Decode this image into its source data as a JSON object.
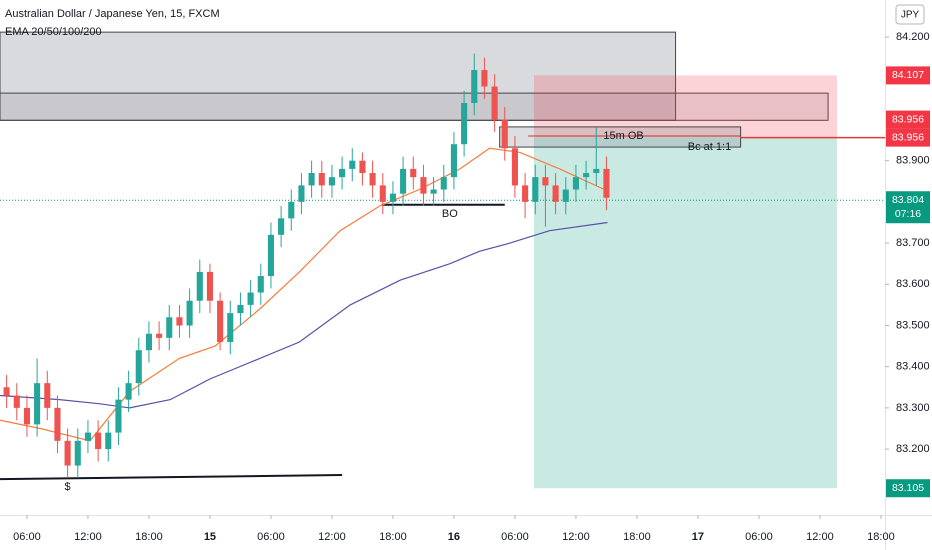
{
  "chart_data": {
    "type": "candlestick",
    "title": "Australian Dollar / Japanese Yen, 15, FXCM",
    "subtitle": "EMA 20/50/100/200",
    "currency": "JPY",
    "xlim": [
      3.35,
      90.4
    ],
    "ylim": [
      83.04,
      84.29
    ],
    "xticks": [
      {
        "value": 6,
        "label": "06:00"
      },
      {
        "value": 12,
        "label": "12:00"
      },
      {
        "value": 18,
        "label": "18:00"
      },
      {
        "value": 24,
        "label": "15"
      },
      {
        "value": 30,
        "label": "06:00"
      },
      {
        "value": 36,
        "label": "12:00"
      },
      {
        "value": 42,
        "label": "18:00"
      },
      {
        "value": 48,
        "label": "16"
      },
      {
        "value": 54,
        "label": "06:00"
      },
      {
        "value": 60,
        "label": "12:00"
      },
      {
        "value": 66,
        "label": "18:00"
      },
      {
        "value": 72,
        "label": "17"
      },
      {
        "value": 78,
        "label": "06:00"
      },
      {
        "value": 84,
        "label": "12:00"
      },
      {
        "value": 90,
        "label": "18:00"
      }
    ],
    "yticks": [
      {
        "value": 84.2,
        "label": "84.200"
      },
      {
        "value": 83.9,
        "label": "83.900"
      },
      {
        "value": 83.7,
        "label": "83.700"
      },
      {
        "value": 83.6,
        "label": "83.600"
      },
      {
        "value": 83.5,
        "label": "83.500"
      },
      {
        "value": 83.4,
        "label": "83.400"
      },
      {
        "value": 83.3,
        "label": "83.300"
      },
      {
        "value": 83.2,
        "label": "83.200"
      }
    ],
    "grid": false,
    "up_color": "#26a69a",
    "down_color": "#ef5350",
    "x": [
      4,
      5,
      6,
      7,
      8,
      9,
      10,
      11,
      12,
      13,
      14,
      15,
      16,
      17,
      18,
      19,
      20,
      21,
      22,
      23,
      24,
      25,
      26,
      27,
      28,
      29,
      30,
      31,
      32,
      33,
      34,
      35,
      36,
      37,
      38,
      39,
      40,
      41,
      42,
      43,
      44,
      45,
      46,
      47,
      48,
      49,
      50,
      51,
      52,
      53,
      54,
      55,
      56,
      57,
      58,
      59,
      60,
      61,
      62,
      63
    ],
    "open": [
      83.35,
      83.33,
      83.3,
      83.26,
      83.36,
      83.3,
      83.22,
      83.16,
      83.22,
      83.24,
      83.2,
      83.24,
      83.32,
      83.36,
      83.44,
      83.48,
      83.47,
      83.52,
      83.5,
      83.56,
      83.63,
      83.56,
      83.46,
      83.53,
      83.55,
      83.58,
      83.62,
      83.72,
      83.76,
      83.8,
      83.84,
      83.87,
      83.84,
      83.86,
      83.88,
      83.9,
      83.87,
      83.84,
      83.8,
      83.82,
      83.88,
      83.86,
      83.82,
      83.83,
      83.86,
      83.94,
      84.04,
      84.12,
      84.08,
      84.0,
      83.93,
      83.84,
      83.8,
      83.86,
      83.84,
      83.8,
      83.83,
      83.86,
      83.87,
      83.88
    ],
    "high": [
      83.38,
      83.36,
      83.33,
      83.42,
      83.39,
      83.33,
      83.25,
      83.25,
      83.27,
      83.27,
      83.27,
      83.35,
      83.39,
      83.47,
      83.51,
      83.51,
      83.55,
      83.55,
      83.59,
      83.66,
      83.65,
      83.58,
      83.56,
      83.58,
      83.61,
      83.65,
      83.75,
      83.79,
      83.83,
      83.87,
      83.9,
      83.9,
      83.89,
      83.91,
      83.93,
      83.92,
      83.9,
      83.87,
      83.85,
      83.91,
      83.91,
      83.89,
      83.86,
      83.89,
      83.97,
      84.07,
      84.16,
      84.15,
      84.11,
      84.03,
      83.96,
      83.87,
      83.89,
      83.89,
      83.87,
      83.86,
      83.89,
      83.9,
      83.98,
      83.91
    ],
    "low": [
      83.3,
      83.27,
      83.23,
      83.23,
      83.27,
      83.19,
      83.13,
      83.13,
      83.19,
      83.17,
      83.17,
      83.21,
      83.29,
      83.33,
      83.41,
      83.44,
      83.44,
      83.47,
      83.47,
      83.53,
      83.53,
      83.44,
      83.43,
      83.5,
      83.52,
      83.55,
      83.59,
      83.69,
      83.73,
      83.77,
      83.81,
      83.81,
      83.81,
      83.83,
      83.85,
      83.84,
      83.81,
      83.77,
      83.77,
      83.79,
      83.83,
      83.79,
      83.79,
      83.8,
      83.83,
      83.91,
      84.01,
      84.05,
      83.97,
      83.9,
      83.81,
      83.76,
      83.77,
      83.74,
      83.77,
      83.77,
      83.8,
      83.83,
      83.84,
      83.78
    ],
    "close": [
      83.33,
      83.3,
      83.26,
      83.36,
      83.3,
      83.22,
      83.16,
      83.22,
      83.24,
      83.2,
      83.24,
      83.32,
      83.36,
      83.44,
      83.48,
      83.47,
      83.52,
      83.5,
      83.56,
      83.63,
      83.56,
      83.46,
      83.53,
      83.55,
      83.58,
      83.62,
      83.72,
      83.76,
      83.8,
      83.84,
      83.87,
      83.84,
      83.86,
      83.88,
      83.9,
      83.87,
      83.84,
      83.8,
      83.82,
      83.88,
      83.86,
      83.82,
      83.83,
      83.86,
      83.94,
      84.04,
      84.12,
      84.08,
      84.0,
      83.93,
      83.84,
      83.8,
      83.86,
      83.84,
      83.8,
      83.83,
      83.86,
      83.87,
      83.88,
      83.81
    ],
    "series": [
      {
        "color": "#f57c3b",
        "x": [
          3.35,
          7.3,
          12.2,
          16.1,
          21,
          24.5,
          28.9,
          32.8,
          36.8,
          40.7,
          44.6,
          48.6,
          51.5,
          54.5,
          58.4,
          62.8
        ],
        "values": [
          83.27,
          83.25,
          83.22,
          83.34,
          83.42,
          83.45,
          83.54,
          83.63,
          83.73,
          83.79,
          83.83,
          83.88,
          83.93,
          83.92,
          83.88,
          83.83
        ]
      },
      {
        "color": "#5b4fa8",
        "x": [
          3.35,
          9.2,
          13.2,
          16.1,
          20.1,
          24,
          28.9,
          32.8,
          37.8,
          42.7,
          47.6,
          50.5,
          53.5,
          57.4,
          63.1
        ],
        "values": [
          83.33,
          83.32,
          83.31,
          83.3,
          83.32,
          83.37,
          83.42,
          83.46,
          83.55,
          83.61,
          83.65,
          83.68,
          83.7,
          83.73,
          83.75
        ]
      }
    ],
    "zones": [
      {
        "x": [
          3.35,
          69.8
        ],
        "y": [
          84.212,
          83.998
        ],
        "fill": "rgba(120,123,134,0.28)",
        "stroke": "#444"
      },
      {
        "x": [
          3.35,
          84.8
        ],
        "y": [
          84.064,
          83.998
        ],
        "fill": "rgba(120,123,134,0.18)",
        "stroke": "#444"
      },
      {
        "x": [
          55.87,
          85.67
        ],
        "y": [
          84.107,
          83.956
        ],
        "fill": "rgba(242,54,69,0.22)",
        "stroke": "none"
      },
      {
        "x": [
          55.87,
          85.67
        ],
        "y": [
          83.956,
          83.105
        ],
        "fill": "rgba(8,153,129,0.22)",
        "stroke": "none"
      },
      {
        "x": [
          52.5,
          76.2
        ],
        "y": [
          83.982,
          83.933
        ],
        "fill": "rgba(120,123,134,0.25)",
        "stroke": "#444"
      }
    ],
    "lines": [
      {
        "x": [
          40.9,
          53.0
        ],
        "y": [
          83.793,
          83.793
        ],
        "color": "#131722",
        "width": 2
      },
      {
        "x": [
          3.35,
          37.0
        ],
        "y": [
          83.127,
          83.137
        ],
        "color": "#131722",
        "width": 2
      },
      {
        "x": [
          55.3,
          76.2
        ],
        "y": [
          83.96,
          83.96
        ],
        "color": "#c0392b",
        "width": 1
      },
      {
        "x": [
          76.2,
          90.4
        ],
        "y": [
          83.956,
          83.956
        ],
        "color": "#e53935",
        "width": 1.5
      }
    ],
    "annotations": [
      {
        "text": "BO",
        "x": 47.6,
        "y": 83.77
      },
      {
        "text": "$",
        "x": 10.0,
        "y": 83.108
      },
      {
        "text": "15m OB",
        "x": 62.7,
        "y": 83.96
      },
      {
        "text": "Bc at 1:1",
        "x": 71.0,
        "y": 83.933
      }
    ],
    "current_price": {
      "value": 83.804,
      "label": "83.804",
      "countdown": "07:16",
      "color": "#089981"
    },
    "price_labels": [
      {
        "value": 84.107,
        "label": "84.107",
        "color": "#f23645"
      },
      {
        "value": 83.956,
        "label": "83.956",
        "color": "#f23645"
      },
      {
        "value": 83.956,
        "label": "83.956",
        "color": "#f23645"
      },
      {
        "value": 83.105,
        "label": "83.105",
        "color": "#089981"
      }
    ]
  }
}
